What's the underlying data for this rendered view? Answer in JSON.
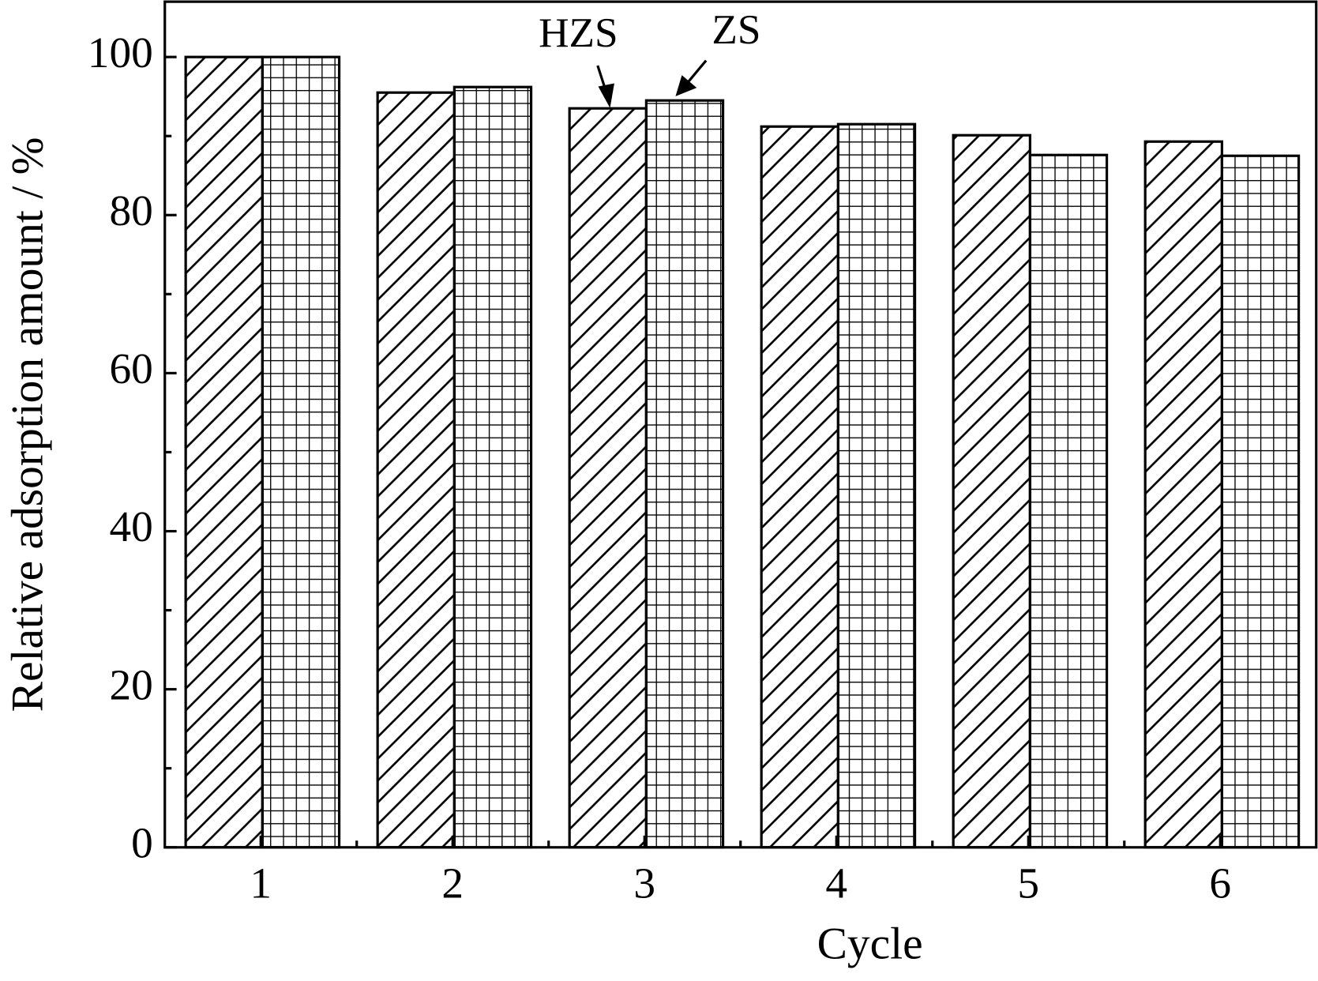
{
  "chart_data": {
    "type": "bar",
    "x_label": "Cycle",
    "y_label": "Relative adsorption amount / %",
    "categories": [
      "1",
      "2",
      "3",
      "4",
      "5",
      "6"
    ],
    "series": [
      {
        "name": "HZS",
        "color": "#000000",
        "hatch": "diagonal",
        "values": [
          100,
          95.5,
          93.5,
          91.2,
          90.1,
          89.3
        ]
      },
      {
        "name": "ZS",
        "color": "#000000",
        "hatch": "grid",
        "values": [
          100,
          96.2,
          94.5,
          91.5,
          87.6,
          87.5
        ]
      }
    ],
    "ylim": [
      0,
      107
    ],
    "yticks": [
      0,
      20,
      40,
      60,
      80,
      100
    ],
    "grid": false
  }
}
